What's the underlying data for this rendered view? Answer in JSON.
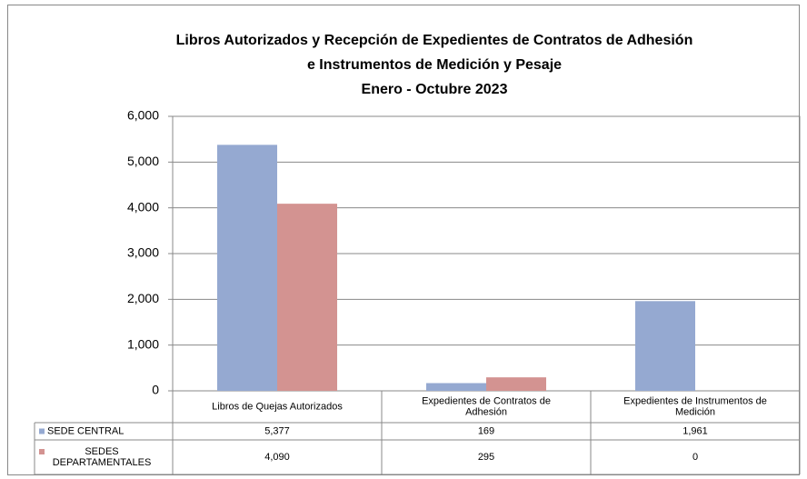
{
  "chart_data": {
    "type": "bar",
    "title": [
      "Libros Autorizados y Recepción de Expedientes de Contratos de Adhesión",
      "e Instrumentos de Medición y Pesaje",
      "Enero  - Octubre  2023"
    ],
    "categories": [
      [
        "Libros de Quejas Autorizados"
      ],
      [
        "Expedientes de Contratos de",
        "Adhesión"
      ],
      [
        "Expedientes de Instrumentos de",
        "Medición"
      ]
    ],
    "series": [
      {
        "name": [
          "SEDE CENTRAL"
        ],
        "color": "#95a9d1",
        "values": [
          5377,
          169,
          1961
        ],
        "value_labels": [
          "5,377",
          "169",
          "1,961"
        ]
      },
      {
        "name": [
          "SEDES",
          "DEPARTAMENTALES"
        ],
        "color": "#d39391",
        "values": [
          4090,
          295,
          0
        ],
        "value_labels": [
          "4,090",
          "295",
          "0"
        ]
      }
    ],
    "ylim": [
      0,
      6000
    ],
    "yticks": [
      0,
      {
        "value": 1000,
        "label": "1,000"
      },
      {
        "value": 2000,
        "label": "2,000"
      },
      {
        "value": 3000,
        "label": "3,000"
      },
      {
        "value": 4000,
        "label": "4,000"
      },
      {
        "value": 5000,
        "label": "5,000"
      },
      {
        "value": 6000,
        "label": "6,000"
      }
    ],
    "grid": true
  }
}
